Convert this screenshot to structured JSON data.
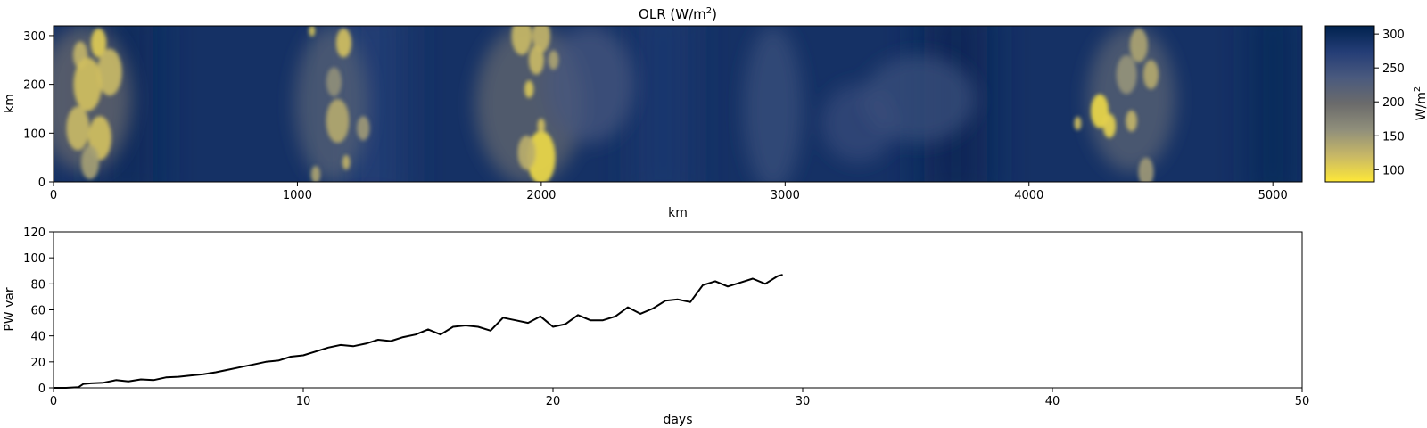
{
  "chart_data": [
    {
      "type": "heatmap",
      "title": "OLR (W/m",
      "title_sup": "2",
      "title_end": ")",
      "xlabel": "km",
      "ylabel": "km",
      "xlim": [
        0,
        5120
      ],
      "ylim": [
        0,
        320
      ],
      "xticks": [
        0,
        1000,
        2000,
        3000,
        4000,
        5000
      ],
      "yticks": [
        0,
        100,
        200,
        300
      ],
      "colormap": "cividis",
      "colorbar": {
        "label": "W/m",
        "label_sup": "2",
        "range": [
          82,
          312
        ],
        "ticks": [
          100,
          150,
          200,
          250,
          300
        ],
        "colors": [
          "#fee838",
          "#c8b866",
          "#908f7b",
          "#6b6b6b",
          "#4a5a7e",
          "#243d76",
          "#00224e"
        ]
      },
      "background_olr": 290,
      "bands": [
        {
          "x": 300,
          "w": 220,
          "value": 300
        },
        {
          "x": 1300,
          "w": 260,
          "value": 275
        },
        {
          "x": 2500,
          "w": 200,
          "value": 280
        },
        {
          "x": 3700,
          "w": 260,
          "value": 303
        },
        {
          "x": 5000,
          "w": 120,
          "value": 306
        }
      ],
      "haze": [
        {
          "x": 130,
          "y": 170,
          "rx": 190,
          "ry": 150,
          "value": 200
        },
        {
          "x": 1140,
          "y": 160,
          "rx": 150,
          "ry": 160,
          "value": 220
        },
        {
          "x": 1950,
          "y": 160,
          "rx": 220,
          "ry": 165,
          "value": 205
        },
        {
          "x": 2200,
          "y": 200,
          "rx": 180,
          "ry": 120,
          "value": 240
        },
        {
          "x": 2950,
          "y": 150,
          "rx": 120,
          "ry": 170,
          "value": 250
        },
        {
          "x": 3300,
          "y": 120,
          "rx": 150,
          "ry": 80,
          "value": 255
        },
        {
          "x": 3550,
          "y": 170,
          "rx": 230,
          "ry": 90,
          "value": 250
        },
        {
          "x": 4420,
          "y": 170,
          "rx": 180,
          "ry": 150,
          "value": 215
        }
      ],
      "cells": [
        {
          "x": 185,
          "y": 285,
          "r": 30,
          "value": 105
        },
        {
          "x": 110,
          "y": 260,
          "r": 28,
          "value": 125
        },
        {
          "x": 230,
          "y": 225,
          "r": 48,
          "value": 120
        },
        {
          "x": 140,
          "y": 200,
          "r": 55,
          "value": 115
        },
        {
          "x": 100,
          "y": 110,
          "r": 45,
          "value": 120
        },
        {
          "x": 190,
          "y": 90,
          "r": 45,
          "value": 115
        },
        {
          "x": 150,
          "y": 40,
          "r": 35,
          "value": 145
        },
        {
          "x": 1190,
          "y": 285,
          "r": 30,
          "value": 115
        },
        {
          "x": 1060,
          "y": 310,
          "r": 12,
          "value": 110
        },
        {
          "x": 1150,
          "y": 205,
          "r": 30,
          "value": 160
        },
        {
          "x": 1165,
          "y": 125,
          "r": 45,
          "value": 135
        },
        {
          "x": 1270,
          "y": 110,
          "r": 25,
          "value": 150
        },
        {
          "x": 1200,
          "y": 40,
          "r": 15,
          "value": 125
        },
        {
          "x": 1075,
          "y": 15,
          "r": 18,
          "value": 140
        },
        {
          "x": 1920,
          "y": 300,
          "r": 40,
          "value": 120
        },
        {
          "x": 2000,
          "y": 300,
          "r": 35,
          "value": 125
        },
        {
          "x": 1980,
          "y": 250,
          "r": 30,
          "value": 120
        },
        {
          "x": 2050,
          "y": 250,
          "r": 20,
          "value": 140
        },
        {
          "x": 1950,
          "y": 190,
          "r": 18,
          "value": 110
        },
        {
          "x": 2000,
          "y": 50,
          "r": 55,
          "value": 95
        },
        {
          "x": 1940,
          "y": 60,
          "r": 35,
          "value": 130
        },
        {
          "x": 2000,
          "y": 115,
          "r": 15,
          "value": 115
        },
        {
          "x": 4290,
          "y": 145,
          "r": 35,
          "value": 95
        },
        {
          "x": 4330,
          "y": 115,
          "r": 25,
          "value": 100
        },
        {
          "x": 4200,
          "y": 120,
          "r": 14,
          "value": 115
        },
        {
          "x": 4420,
          "y": 125,
          "r": 22,
          "value": 125
        },
        {
          "x": 4450,
          "y": 280,
          "r": 35,
          "value": 140
        },
        {
          "x": 4400,
          "y": 220,
          "r": 40,
          "value": 155
        },
        {
          "x": 4500,
          "y": 220,
          "r": 30,
          "value": 135
        },
        {
          "x": 4480,
          "y": 20,
          "r": 30,
          "value": 150
        }
      ]
    },
    {
      "type": "line",
      "xlabel": "days",
      "ylabel": "PW var",
      "xlim": [
        0,
        50
      ],
      "ylim": [
        0,
        120
      ],
      "xticks": [
        0,
        10,
        20,
        30,
        40,
        50
      ],
      "yticks": [
        0,
        20,
        40,
        60,
        80,
        100,
        120
      ],
      "color": "#000000",
      "x": [
        0,
        0.5,
        1,
        1.2,
        1.5,
        2,
        2.5,
        3,
        3.5,
        4,
        4.5,
        5,
        5.5,
        6,
        6.5,
        7,
        7.5,
        8,
        8.5,
        9,
        9.5,
        10,
        10.5,
        11,
        11.5,
        12,
        12.5,
        13,
        13.5,
        14,
        14.5,
        15,
        15.5,
        16,
        16.5,
        17,
        17.5,
        18,
        18.5,
        19,
        19.5,
        20,
        20.5,
        21,
        21.5,
        22,
        22.5,
        23,
        23.5,
        24,
        24.5,
        25,
        25.5,
        26,
        26.5,
        27,
        27.5,
        28,
        28.5,
        29,
        29.2
      ],
      "y": [
        0,
        0,
        0.5,
        3,
        3.5,
        4,
        6,
        5,
        6.5,
        6,
        8,
        8.5,
        9.5,
        10.5,
        12,
        14,
        16,
        18,
        20,
        21,
        24,
        25,
        28,
        31,
        33,
        32,
        34,
        37,
        36,
        39,
        41,
        45,
        41,
        47,
        48,
        47,
        44,
        54,
        52,
        50,
        55,
        47,
        49,
        56,
        52,
        52,
        55,
        62,
        57,
        61,
        67,
        68,
        66,
        79,
        82,
        78,
        81,
        84,
        80,
        86,
        87
      ]
    }
  ]
}
